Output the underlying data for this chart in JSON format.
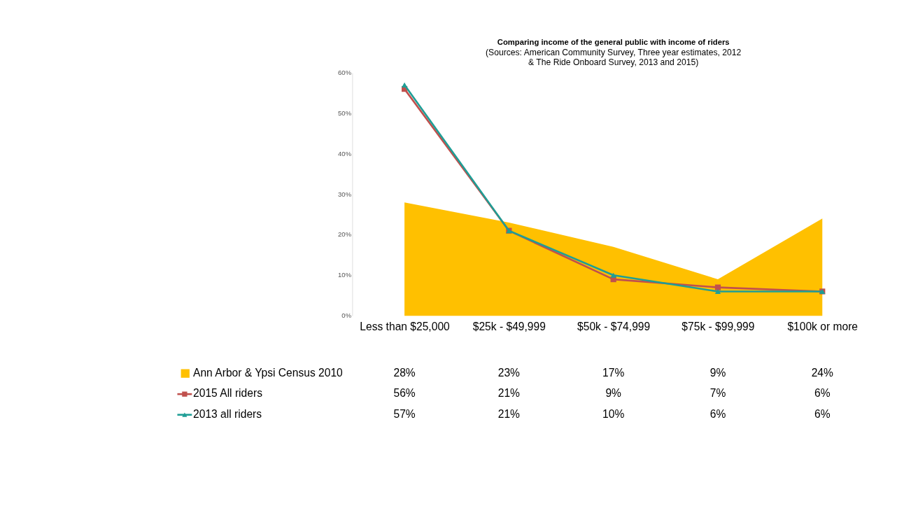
{
  "chart_data": {
    "type": "line",
    "title": "Comparing income of the general public with income of riders",
    "subtitle": "(Sources: American Community Survey, Three year estimates, 2012\n& The Ride Onboard Survey,  2013 and 2015)",
    "categories": [
      "Less than $25,000",
      "$25k - $49,999",
      "$50k - $74,999",
      "$75k - $99,999",
      "$100k or more"
    ],
    "series": [
      {
        "name": "Ann Arbor & Ypsi Census 2010",
        "type": "area",
        "color": "#ffc000",
        "values": [
          28,
          23,
          17,
          9,
          24
        ],
        "value_labels": [
          "28%",
          "23%",
          "17%",
          "9%",
          "24%"
        ]
      },
      {
        "name": "2015 All riders",
        "color": "#c0504d",
        "marker": "square",
        "values": [
          56,
          21,
          9,
          7,
          6
        ],
        "value_labels": [
          "56%",
          "21%",
          "9%",
          "7%",
          "6%"
        ]
      },
      {
        "name": "2013 all riders",
        "color": "#1f9e96",
        "marker": "triangle",
        "values": [
          57,
          21,
          10,
          6,
          6
        ],
        "value_labels": [
          "57%",
          "21%",
          "10%",
          "6%",
          "6%"
        ]
      }
    ],
    "ylim": [
      0,
      60
    ],
    "yticks": [
      {
        "value": 0,
        "label": "0%"
      },
      {
        "value": 10,
        "label": "10%"
      },
      {
        "value": 20,
        "label": "20%"
      },
      {
        "value": 30,
        "label": "30%"
      },
      {
        "value": 40,
        "label": "40%"
      },
      {
        "value": 50,
        "label": "50%"
      },
      {
        "value": 60,
        "label": "60%"
      }
    ],
    "grid": false,
    "legend": "bottom"
  }
}
